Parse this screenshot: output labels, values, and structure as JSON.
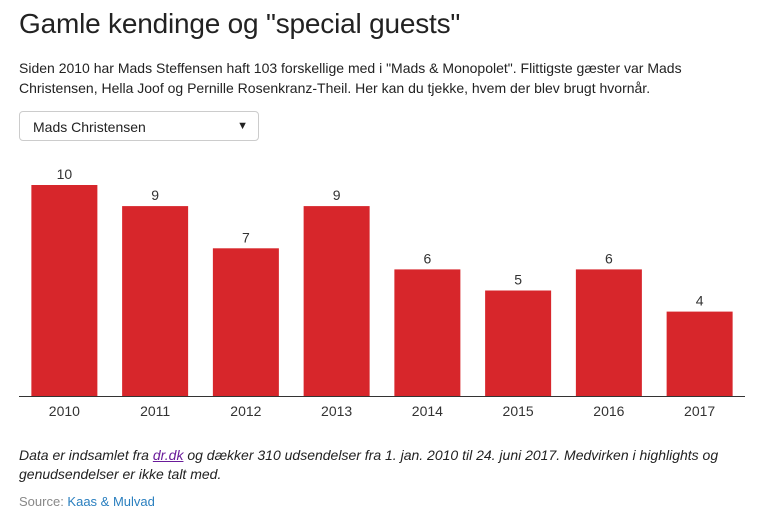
{
  "header": {
    "title": "Gamle kendinge og \"special guests\"",
    "subtitle": "Siden 2010 har Mads Steffensen haft 103 forskellige med i \"Mads & Monopolet\". Flittigste gæster var Mads Christensen, Hella Joof og Pernille Rosenkranz-Theil. Her kan du tjekke, hvem der blev brugt hvornår."
  },
  "dropdown": {
    "selected": "Mads Christensen",
    "arrow_icon": "triangle-down"
  },
  "chart_data": {
    "type": "bar",
    "categories": [
      "2010",
      "2011",
      "2012",
      "2013",
      "2014",
      "2015",
      "2016",
      "2017"
    ],
    "values": [
      10,
      9,
      7,
      9,
      6,
      5,
      6,
      4
    ],
    "ylim": [
      0,
      10
    ],
    "grid": false,
    "bar_color": "#d7262b",
    "data_labels": true
  },
  "footnote": {
    "before_link": "Data er indsamlet fra ",
    "link_text": "dr.dk",
    "after_link": " og dækker 310 udsendelser fra 1. jan. 2010 til 24. juni 2017. Medvirken i highlights og genudsendelser er ikke talt med."
  },
  "source": {
    "label": "Source: ",
    "link_text": "Kaas & Mulvad"
  },
  "colors": {
    "bar": "#d7262b",
    "text": "#222222",
    "source_link": "#2a7fbf",
    "footnote_link": "#6a1b9a"
  }
}
